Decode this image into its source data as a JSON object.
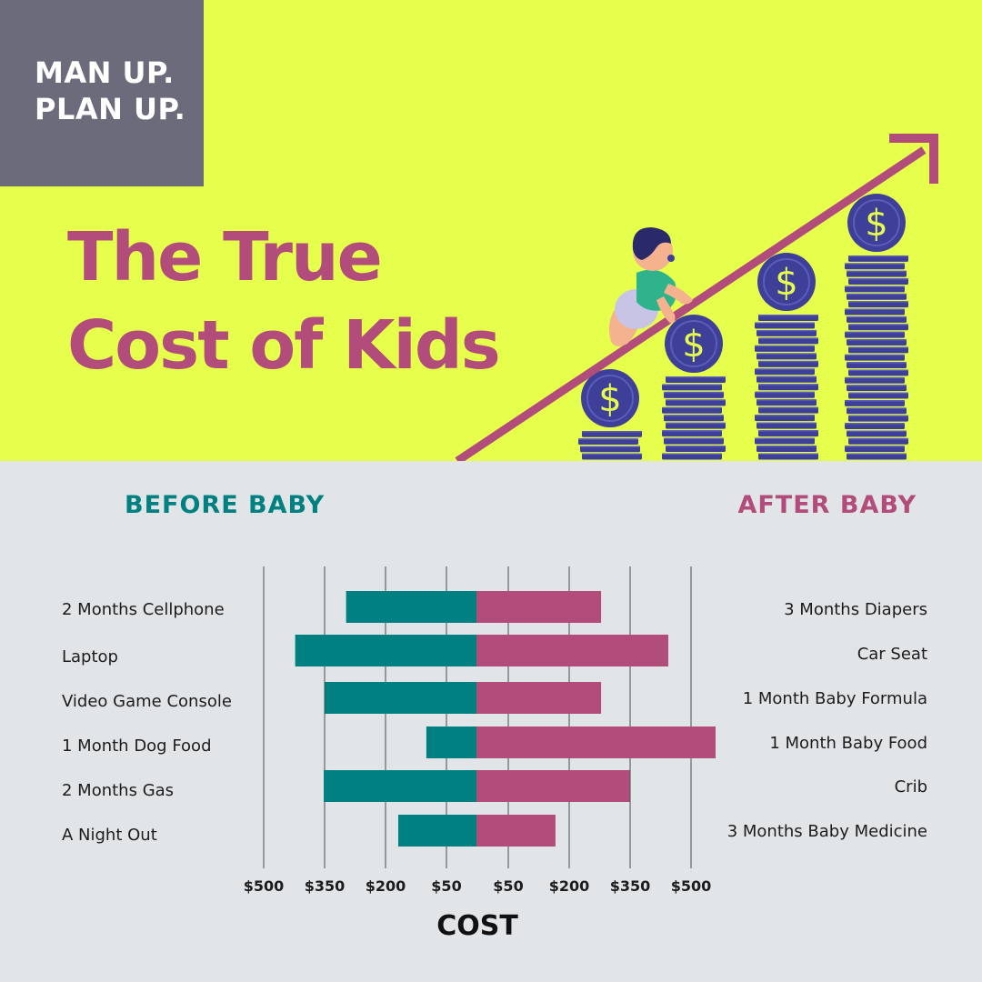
{
  "colors": {
    "top_bg": "#e6ff4d",
    "bottom_bg": "#e2e5e8",
    "badge_bg": "#6b6b7b",
    "title": "#b24c7a",
    "before": "#008080",
    "after": "#b24c7a",
    "coin": "#3d3f99",
    "dollar": "#e6ff4d"
  },
  "badge": {
    "line1": "MAN UP.",
    "line2": "PLAN UP."
  },
  "title": {
    "line1": "The True",
    "line2": "Cost of Kids"
  },
  "illustration": {
    "icons": [
      "baby-crawling-icon",
      "rising-arrow-icon",
      "coin-stack-icon",
      "dollar-coin-icon"
    ],
    "dollar_symbol": "$"
  },
  "chart_data": {
    "type": "bar",
    "orientation": "horizontal-diverging",
    "left_header": "BEFORE BABY",
    "right_header": "AFTER BABY",
    "xlabel": "COST",
    "x_tick_labels": [
      "$500",
      "$350",
      "$200",
      "$50",
      "$50",
      "$200",
      "$350",
      "$500"
    ],
    "grid": true,
    "before_categories": [
      "2 Months Cellphone",
      "Laptop",
      "Video Game Console",
      "1 Month Dog Food",
      "2 Months Gas",
      "A Night Out"
    ],
    "after_categories": [
      "3 Months Diapers",
      "Car Seat",
      "1 Month Baby Formula",
      "1 Month Baby Food",
      "Crib",
      "3 Months Baby Medicine"
    ],
    "series": [
      {
        "name": "BEFORE BABY",
        "values": [
          320,
          445,
          372,
          123,
          375,
          192
        ]
      },
      {
        "name": "AFTER BABY",
        "values": [
          306,
          471,
          306,
          587,
          376,
          194
        ]
      }
    ]
  }
}
